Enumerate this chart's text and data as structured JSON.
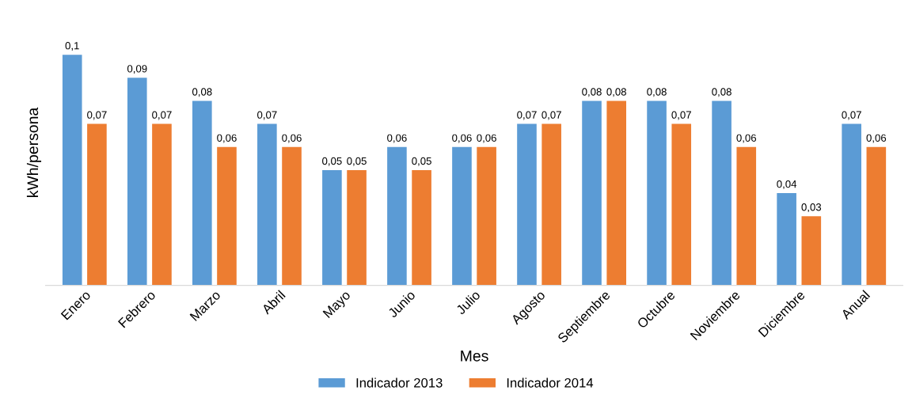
{
  "chart_data": {
    "type": "bar",
    "xlabel": "Mes",
    "ylabel": "kWh/persona",
    "categories": [
      "Enero",
      "Febrero",
      "Marzo",
      "Abril",
      "Mayo",
      "Junio",
      "Julio",
      "Agosto",
      "Septiembre",
      "Octubre",
      "Noviembre",
      "Diciembre",
      "Anual"
    ],
    "series": [
      {
        "name": "Indicador 2013",
        "color": "#5b9bd5",
        "values": [
          0.1,
          0.09,
          0.08,
          0.07,
          0.05,
          0.06,
          0.06,
          0.07,
          0.08,
          0.08,
          0.08,
          0.04,
          0.07
        ],
        "value_labels": [
          "0,1",
          "0,09",
          "0,08",
          "0,07",
          "0,05",
          "0,06",
          "0,06",
          "0,07",
          "0,08",
          "0,08",
          "0,08",
          "0,04",
          "0,07"
        ]
      },
      {
        "name": "Indicador 2014",
        "color": "#ed7d31",
        "values": [
          0.07,
          0.07,
          0.06,
          0.06,
          0.05,
          0.05,
          0.06,
          0.07,
          0.08,
          0.07,
          0.06,
          0.03,
          0.06
        ],
        "value_labels": [
          "0,07",
          "0,07",
          "0,06",
          "0,06",
          "0,05",
          "0,05",
          "0,06",
          "0,07",
          "0,08",
          "0,07",
          "0,06",
          "0,03",
          "0,06"
        ]
      }
    ],
    "legend": "bottom",
    "grid": false
  }
}
